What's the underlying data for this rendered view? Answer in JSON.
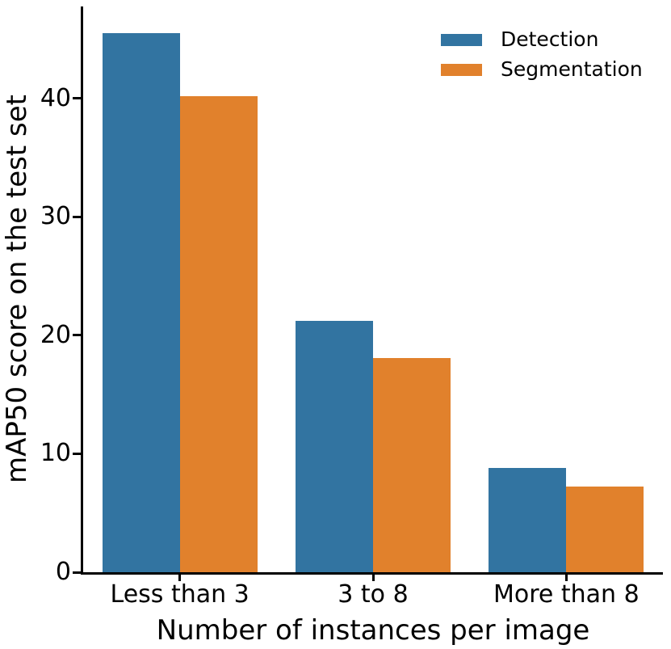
{
  "chart_data": {
    "type": "bar",
    "title": "",
    "xlabel": "Number of instances per image",
    "ylabel": "mAP50 score on the test set",
    "categories": [
      "Less than 3",
      "3 to 8",
      "More than 8"
    ],
    "series": [
      {
        "name": "Detection",
        "color": "#3274a1",
        "values": [
          45.5,
          21.2,
          8.8
        ]
      },
      {
        "name": "Segmentation",
        "color": "#e1812c",
        "values": [
          40.2,
          18.1,
          7.2
        ]
      }
    ],
    "yticks": [
      0,
      10,
      20,
      30,
      40
    ],
    "ylim": [
      0,
      47.75
    ],
    "grid": false,
    "legend_position": "upper-right",
    "axis_color": "#000000",
    "background_color": "#ffffff"
  }
}
